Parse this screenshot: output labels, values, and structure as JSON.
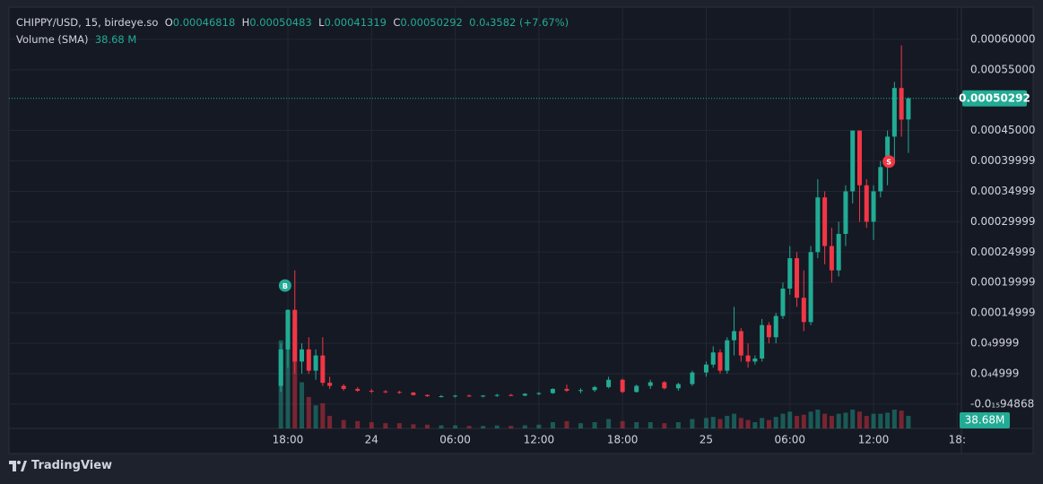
{
  "chart_data": {
    "type": "candlestick",
    "title": "CHIPPY/USD, 15, birdeye.so",
    "ohlc_keys": [
      "O",
      "H",
      "L",
      "C"
    ],
    "ohlc": [
      0.00046818,
      0.00050483,
      0.00041319,
      0.00050292
    ],
    "change": "0.0₄3582 (+7.67%)",
    "volume_title": "Volume (SMA)",
    "volume_sma": "38.68 M",
    "volume_sma_label": "38.68M",
    "up_color": "#22ab94",
    "down_color": "#f23645",
    "grid": true,
    "xlim": [
      -2,
      66.3
    ],
    "ylim": [
      -4e-05,
      0.00065
    ],
    "y2lim": [
      0,
      2000
    ],
    "xticks": [
      {
        "value": 18,
        "label": "18:00"
      },
      24,
      {
        "value": 30,
        "label": "06:00"
      },
      {
        "value": 36,
        "label": "12:00"
      },
      {
        "value": 42,
        "label": "18:00"
      },
      {
        "value": 48,
        "label": "25"
      },
      {
        "value": 54,
        "label": "06:00"
      },
      {
        "value": 60,
        "label": "12:00"
      },
      {
        "value": 66,
        "label": "18:"
      }
    ],
    "yticks": [
      {
        "value": 0.0006,
        "label": "0.00060000"
      },
      {
        "value": 0.00055,
        "label": "0.00055000"
      },
      {
        "value": 0.00045,
        "label": "0.00045000"
      },
      {
        "value": 0.00039999,
        "label": "0.00039999"
      },
      {
        "value": 0.00034999,
        "label": "0.00034999"
      },
      {
        "value": 0.00029999,
        "label": "0.00029999"
      },
      {
        "value": 0.00024999,
        "label": "0.00024999"
      },
      {
        "value": 0.00019999,
        "label": "0.00019999"
      },
      {
        "value": 0.00014999,
        "label": "0.00014999"
      },
      {
        "value": 9.999e-05,
        "label": "0.0₄9999"
      },
      {
        "value": 4.999e-05,
        "label": "0.0₄4999"
      },
      {
        "value": -9.4868e-17,
        "label": "-0.0₁₅94868"
      }
    ],
    "x": [
      17.5,
      18,
      18.5,
      19,
      19.5,
      20,
      20.5,
      21,
      22,
      23,
      24,
      25,
      26,
      27,
      28,
      29,
      30,
      31,
      32,
      33,
      34,
      35,
      36,
      37,
      38,
      39,
      40,
      41,
      42,
      43,
      44,
      45,
      46,
      47,
      48,
      48.5,
      49,
      49.5,
      50,
      50.5,
      51,
      51.5,
      52,
      52.5,
      53,
      53.5,
      54,
      54.5,
      55,
      55.5,
      56,
      56.5,
      57,
      57.5,
      58,
      58.5,
      59,
      59.5,
      60,
      60.5,
      61,
      61.5,
      62,
      62.5
    ],
    "open": [
      3e-05,
      9e-05,
      0.000155,
      7e-05,
      9e-05,
      5.5e-05,
      8e-05,
      3.5e-05,
      3e-05,
      2.5e-05,
      2.2e-05,
      2.1e-05,
      2e-05,
      1.9e-05,
      1.5e-05,
      1.3e-05,
      1.3e-05,
      1.4e-05,
      1.3e-05,
      1.4e-05,
      1.5e-05,
      1.4e-05,
      1.7e-05,
      1.8e-05,
      2.5e-05,
      2.2e-05,
      2.3e-05,
      2.8e-05,
      4e-05,
      2e-05,
      3e-05,
      3.6e-05,
      2.6e-05,
      3.3e-05,
      5.2e-05,
      6.5e-05,
      8.5e-05,
      5.5e-05,
      0.000105,
      0.00012,
      8e-05,
      7e-05,
      7.5e-05,
      0.00013,
      0.00011,
      0.000145,
      0.00019,
      0.00024,
      0.000175,
      0.000135,
      0.00025,
      0.00034,
      0.00026,
      0.00022,
      0.00028,
      0.00035,
      0.00045,
      0.00036,
      0.0003,
      0.00035,
      0.00039,
      0.00044,
      0.00052,
      0.00046818
    ],
    "high": [
      0.0001,
      0.000156,
      0.00022,
      0.0001,
      0.00011,
      9e-05,
      0.00011,
      4.5e-05,
      3.3e-05,
      2.8e-05,
      2.5e-05,
      2.3e-05,
      2.2e-05,
      2e-05,
      1.6e-05,
      1.5e-05,
      1.5e-05,
      1.6e-05,
      1.5e-05,
      1.7e-05,
      1.7e-05,
      1.8e-05,
      2e-05,
      2.6e-05,
      3.2e-05,
      2.6e-05,
      3e-05,
      4.5e-05,
      4.2e-05,
      3.2e-05,
      4e-05,
      3.8e-05,
      3.5e-05,
      5.5e-05,
      7e-05,
      9.5e-05,
      9e-05,
      0.00011,
      0.00016,
      0.000125,
      0.0001,
      8e-05,
      0.00014,
      0.000135,
      0.00015,
      0.0002,
      0.00026,
      0.00025,
      0.00022,
      0.00026,
      0.00037,
      0.00035,
      0.00029,
      0.0003,
      0.00036,
      0.00045,
      0.00045,
      0.00037,
      0.00036,
      0.0004,
      0.00045,
      0.00053,
      0.00059,
      0.00050483
    ],
    "low": [
      2e-05,
      6e-05,
      5e-05,
      5e-05,
      5e-05,
      4e-05,
      3e-05,
      2.5e-05,
      2.2e-05,
      2e-05,
      1.8e-05,
      1.8e-05,
      1.7e-05,
      1.4e-05,
      1.2e-05,
      1.1e-05,
      1.1e-05,
      1.2e-05,
      1.1e-05,
      1.2e-05,
      1.3e-05,
      1.3e-05,
      1.5e-05,
      1.7e-05,
      2e-05,
      1.8e-05,
      2e-05,
      2.6e-05,
      1.8e-05,
      1.9e-05,
      2.5e-05,
      2.4e-05,
      2.2e-05,
      3e-05,
      4.5e-05,
      6e-05,
      5e-05,
      5e-05,
      8e-05,
      7e-05,
      6e-05,
      6.5e-05,
      7e-05,
      0.0001,
      0.0001,
      0.00014,
      0.00018,
      0.00016,
      0.00012,
      0.00013,
      0.00024,
      0.00023,
      0.0002,
      0.00021,
      0.00026,
      0.00033,
      0.0003,
      0.00029,
      0.00027,
      0.00034,
      0.00036,
      0.0004,
      0.00044,
      0.00041319
    ],
    "close": [
      9e-05,
      0.000155,
      7e-05,
      9e-05,
      5.5e-05,
      8e-05,
      3.5e-05,
      3e-05,
      2.5e-05,
      2.2e-05,
      2.1e-05,
      2e-05,
      1.9e-05,
      1.5e-05,
      1.3e-05,
      1.3e-05,
      1.4e-05,
      1.3e-05,
      1.4e-05,
      1.5e-05,
      1.4e-05,
      1.7e-05,
      1.8e-05,
      2.5e-05,
      2.2e-05,
      2.3e-05,
      2.8e-05,
      4e-05,
      2e-05,
      3e-05,
      3.6e-05,
      2.6e-05,
      3.3e-05,
      5.2e-05,
      6.5e-05,
      8.5e-05,
      5.5e-05,
      0.000105,
      0.00012,
      8e-05,
      7e-05,
      7.5e-05,
      0.00013,
      0.00011,
      0.000145,
      0.00019,
      0.00024,
      0.000175,
      0.000135,
      0.00025,
      0.00034,
      0.00026,
      0.00022,
      0.00028,
      0.00035,
      0.00045,
      0.00036,
      0.0003,
      0.00035,
      0.00039,
      0.00044,
      0.00052,
      0.000468,
      0.00050292
    ],
    "volume": [
      420,
      560,
      480,
      220,
      150,
      110,
      120,
      60,
      40,
      35,
      30,
      25,
      25,
      20,
      18,
      15,
      15,
      12,
      12,
      14,
      12,
      15,
      18,
      30,
      35,
      25,
      30,
      45,
      35,
      30,
      30,
      25,
      30,
      45,
      50,
      55,
      45,
      60,
      70,
      50,
      40,
      30,
      50,
      40,
      55,
      70,
      80,
      60,
      65,
      80,
      90,
      70,
      60,
      70,
      75,
      90,
      80,
      60,
      70,
      70,
      75,
      90,
      85,
      60
    ],
    "markers": [
      {
        "label": "B",
        "x": 17.8,
        "y": 0.000195
      },
      {
        "label": "S",
        "x": 61.1,
        "y": 0.000399
      }
    ],
    "brand": "TradingView"
  }
}
